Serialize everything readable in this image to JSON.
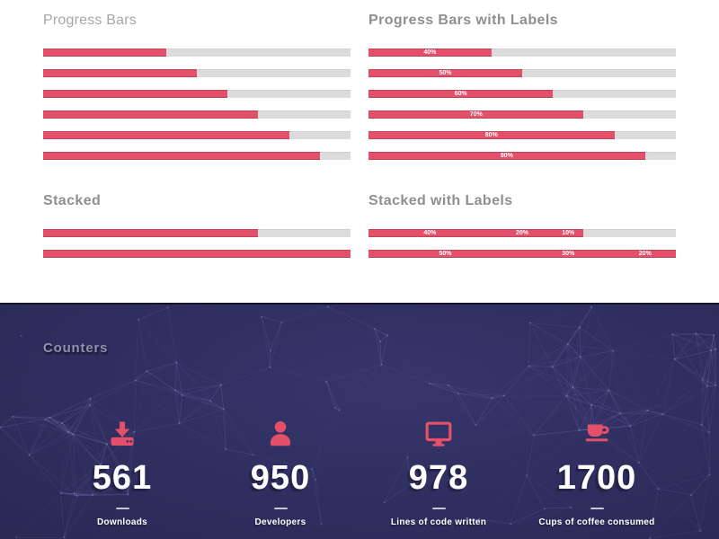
{
  "colors": {
    "accent": "#e4506a",
    "track": "#dcdcdc",
    "dark_background": "#2f2e5f"
  },
  "progress_bars": {
    "title": "Progress Bars",
    "values": [
      40,
      50,
      60,
      70,
      80,
      90
    ]
  },
  "progress_bars_with_labels": {
    "title": "Progress Bars with Labels",
    "bars": [
      {
        "value": 40,
        "label": "40%"
      },
      {
        "value": 50,
        "label": "50%"
      },
      {
        "value": 60,
        "label": "60%"
      },
      {
        "value": 70,
        "label": "70%"
      },
      {
        "value": 80,
        "label": "80%"
      },
      {
        "value": 90,
        "label": "90%"
      }
    ]
  },
  "stacked": {
    "title": "Stacked",
    "bars": [
      [
        40,
        20,
        10
      ],
      [
        50,
        30,
        20
      ]
    ]
  },
  "stacked_with_labels": {
    "title": "Stacked with Labels",
    "bars": [
      [
        {
          "value": 40,
          "label": "40%"
        },
        {
          "value": 20,
          "label": "20%"
        },
        {
          "value": 10,
          "label": "10%"
        }
      ],
      [
        {
          "value": 50,
          "label": "50%"
        },
        {
          "value": 30,
          "label": "30%"
        },
        {
          "value": 20,
          "label": "20%"
        }
      ]
    ]
  },
  "counters": {
    "title": "Counters",
    "items": [
      {
        "icon": "download-icon",
        "value": "561",
        "label": "Downloads"
      },
      {
        "icon": "user-icon",
        "value": "950",
        "label": "Developers"
      },
      {
        "icon": "monitor-icon",
        "value": "978",
        "label": "Lines of code written"
      },
      {
        "icon": "coffee-icon",
        "value": "1700",
        "label": "Cups of coffee consumed"
      }
    ]
  }
}
